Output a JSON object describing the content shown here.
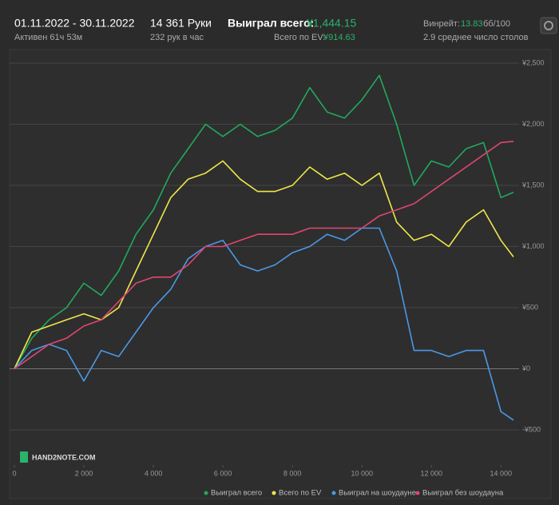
{
  "header": {
    "period": "01.11.2022 - 30.11.2022",
    "active": "Активен 61ч 53м",
    "hands": "14 361 Руки",
    "rate": "232 рук в час",
    "won_label": "Выиграл всего:",
    "won_value": "¥1,444.15",
    "ev_label": "Всего по EV:",
    "ev_value": "¥914.63",
    "winrate_label": "Винрейт:",
    "winrate_value": "13.83",
    "winrate_unit": "бб/100",
    "tables": "2.9 среднее число столов"
  },
  "logo": "HAND2NOTE.COM",
  "chart_data": {
    "type": "line",
    "x": [
      0,
      500,
      1000,
      1500,
      2000,
      2500,
      3000,
      3500,
      4000,
      4500,
      5000,
      5500,
      6000,
      6500,
      7000,
      7500,
      8000,
      8500,
      9000,
      9500,
      10000,
      10500,
      11000,
      11500,
      12000,
      12500,
      13000,
      13500,
      14000,
      14361
    ],
    "series": [
      {
        "name": "Выиграл всего",
        "color": "#22a85e",
        "values": [
          0,
          250,
          400,
          500,
          700,
          600,
          800,
          1100,
          1300,
          1600,
          1800,
          2000,
          1900,
          2000,
          1900,
          1950,
          2050,
          2300,
          2100,
          2050,
          2200,
          2400,
          2000,
          1500,
          1700,
          1650,
          1800,
          1850,
          1400,
          1444
        ]
      },
      {
        "name": "Всего по EV",
        "color": "#eee74a",
        "values": [
          0,
          300,
          350,
          400,
          450,
          400,
          500,
          800,
          1100,
          1400,
          1550,
          1600,
          1700,
          1550,
          1450,
          1450,
          1500,
          1650,
          1550,
          1600,
          1500,
          1600,
          1200,
          1050,
          1100,
          1000,
          1200,
          1300,
          1050,
          915
        ]
      },
      {
        "name": "Выиграл на шоудауне",
        "color": "#4a98e6",
        "values": [
          0,
          150,
          200,
          150,
          -100,
          150,
          100,
          300,
          500,
          650,
          900,
          1000,
          1050,
          850,
          800,
          850,
          950,
          1000,
          1100,
          1050,
          1150,
          1150,
          800,
          150,
          150,
          100,
          150,
          150,
          -350,
          -420
        ]
      },
      {
        "name": "Выиграл без шоудауна",
        "color": "#e0466f",
        "values": [
          0,
          100,
          200,
          250,
          350,
          400,
          550,
          700,
          750,
          750,
          850,
          1000,
          1000,
          1050,
          1100,
          1100,
          1100,
          1150,
          1150,
          1150,
          1150,
          1250,
          1300,
          1350,
          1450,
          1550,
          1650,
          1750,
          1850,
          1860
        ]
      }
    ],
    "xlim": [
      0,
      14361
    ],
    "ylim": [
      -650,
      2650
    ],
    "xticks": [
      0,
      {
        "value": 2000,
        "label": "2 000"
      },
      {
        "value": 4000,
        "label": "4 000"
      },
      {
        "value": 6000,
        "label": "6 000"
      },
      {
        "value": 8000,
        "label": "8 000"
      },
      {
        "value": 10000,
        "label": "10 000"
      },
      {
        "value": 12000,
        "label": "12 000"
      },
      {
        "value": 14000,
        "label": "14 000"
      }
    ],
    "yticks": [
      {
        "value": -500,
        "label": "-¥500"
      },
      {
        "value": 0,
        "label": "¥0"
      },
      {
        "value": 500,
        "label": "¥500"
      },
      {
        "value": 1000,
        "label": "¥1,000"
      },
      {
        "value": 1500,
        "label": "¥1,500"
      },
      {
        "value": 2000,
        "label": "¥2,000"
      },
      {
        "value": 2500,
        "label": "¥2,500"
      }
    ],
    "grid": true
  }
}
